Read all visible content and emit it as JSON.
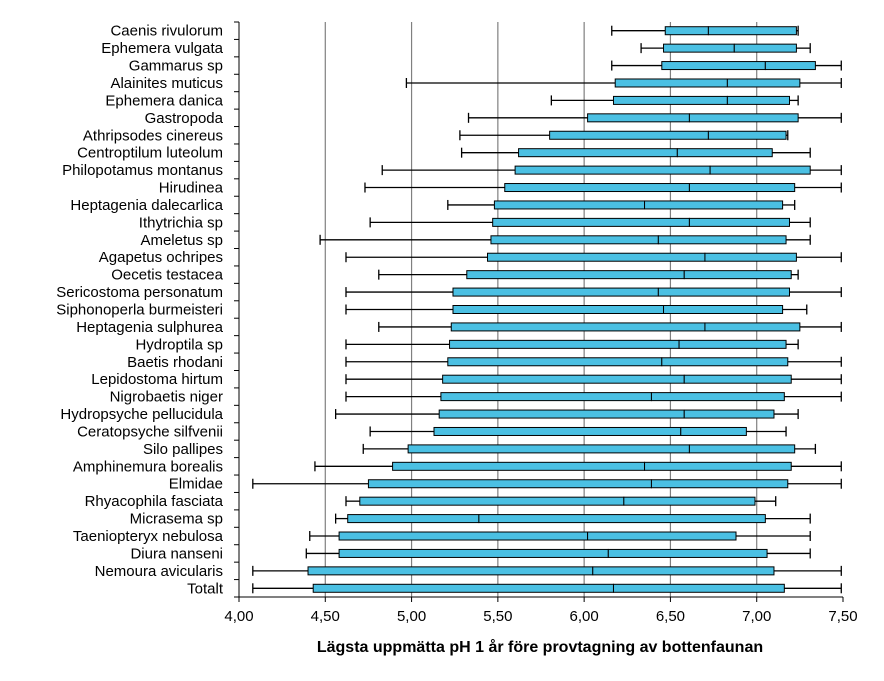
{
  "chart_data": {
    "type": "boxplot",
    "orientation": "horizontal",
    "xlabel": "Lägsta uppmätta pH 1 år före provtagning av bottenfaunan",
    "xlim": [
      4.0,
      7.5
    ],
    "xticks": [
      4.0,
      4.5,
      5.0,
      5.5,
      6.0,
      6.5,
      7.0,
      7.5
    ],
    "xtick_labels": [
      "4,00",
      "4,50",
      "5,00",
      "5,50",
      "6,00",
      "6,50",
      "7,00",
      "7,50"
    ],
    "grid": "vertical at 5,00 / 5,50 / 6,00 / 6,50",
    "colors": {
      "box_fill": "#4bc0e3",
      "line": "#000000",
      "grid": "#808080"
    },
    "categories": [
      "Caenis rivulorum",
      "Ephemera vulgata",
      "Gammarus sp",
      "Alainites muticus",
      "Ephemera danica",
      "Gastropoda",
      "Athripsodes cinereus",
      "Centroptilum luteolum",
      "Philopotamus montanus",
      "Hirudinea",
      "Heptagenia dalecarlica",
      "Ithytrichia sp",
      "Ameletus sp",
      "Agapetus ochripes",
      "Oecetis testacea",
      "Sericostoma personatum",
      "Siphonoperla burmeisteri",
      "Heptagenia sulphurea",
      "Hydroptila sp",
      "Baetis rhodani",
      "Lepidostoma hirtum",
      "Nigrobaetis niger",
      "Hydropsyche pellucidula",
      "Ceratopsyche silfvenii",
      "Silo pallipes",
      "Amphinemura borealis",
      "Elmidae",
      "Rhyacophila fasciata",
      "Micrasema sp",
      "Taeniopteryx nebulosa",
      "Diura nanseni",
      "Nemoura avicularis",
      "Totalt"
    ],
    "min": [
      6.16,
      6.33,
      6.16,
      4.97,
      5.81,
      5.33,
      5.28,
      5.29,
      4.83,
      4.73,
      5.21,
      4.76,
      4.47,
      4.62,
      4.81,
      4.62,
      4.62,
      4.81,
      4.62,
      4.62,
      4.62,
      4.62,
      4.56,
      4.76,
      4.72,
      4.44,
      4.08,
      4.62,
      4.56,
      4.41,
      4.39,
      4.08,
      4.08
    ],
    "q1": [
      6.47,
      6.46,
      6.45,
      6.18,
      6.17,
      6.02,
      5.8,
      5.62,
      5.6,
      5.54,
      5.48,
      5.47,
      5.46,
      5.44,
      5.32,
      5.24,
      5.24,
      5.23,
      5.22,
      5.21,
      5.18,
      5.17,
      5.16,
      5.13,
      4.98,
      4.89,
      4.75,
      4.7,
      4.63,
      4.58,
      4.58,
      4.4,
      4.43
    ],
    "median": [
      6.72,
      6.87,
      7.05,
      6.83,
      6.83,
      6.61,
      6.72,
      6.54,
      6.73,
      6.61,
      6.35,
      6.61,
      6.43,
      6.7,
      6.58,
      6.43,
      6.46,
      6.7,
      6.55,
      6.45,
      6.58,
      6.39,
      6.58,
      6.56,
      6.61,
      6.35,
      6.39,
      6.23,
      5.39,
      6.02,
      6.14,
      6.05,
      6.17
    ],
    "q3": [
      7.23,
      7.23,
      7.34,
      7.25,
      7.19,
      7.24,
      7.17,
      7.09,
      7.31,
      7.22,
      7.15,
      7.19,
      7.17,
      7.23,
      7.2,
      7.19,
      7.15,
      7.25,
      7.17,
      7.18,
      7.2,
      7.16,
      7.1,
      6.94,
      7.22,
      7.2,
      7.18,
      6.99,
      7.05,
      6.88,
      7.06,
      7.1,
      7.16
    ],
    "max": [
      7.24,
      7.31,
      7.49,
      7.49,
      7.24,
      7.49,
      7.18,
      7.31,
      7.49,
      7.49,
      7.22,
      7.31,
      7.31,
      7.49,
      7.24,
      7.49,
      7.29,
      7.49,
      7.24,
      7.49,
      7.49,
      7.49,
      7.24,
      7.17,
      7.34,
      7.49,
      7.49,
      7.11,
      7.31,
      7.31,
      7.31,
      7.49,
      7.49
    ]
  }
}
